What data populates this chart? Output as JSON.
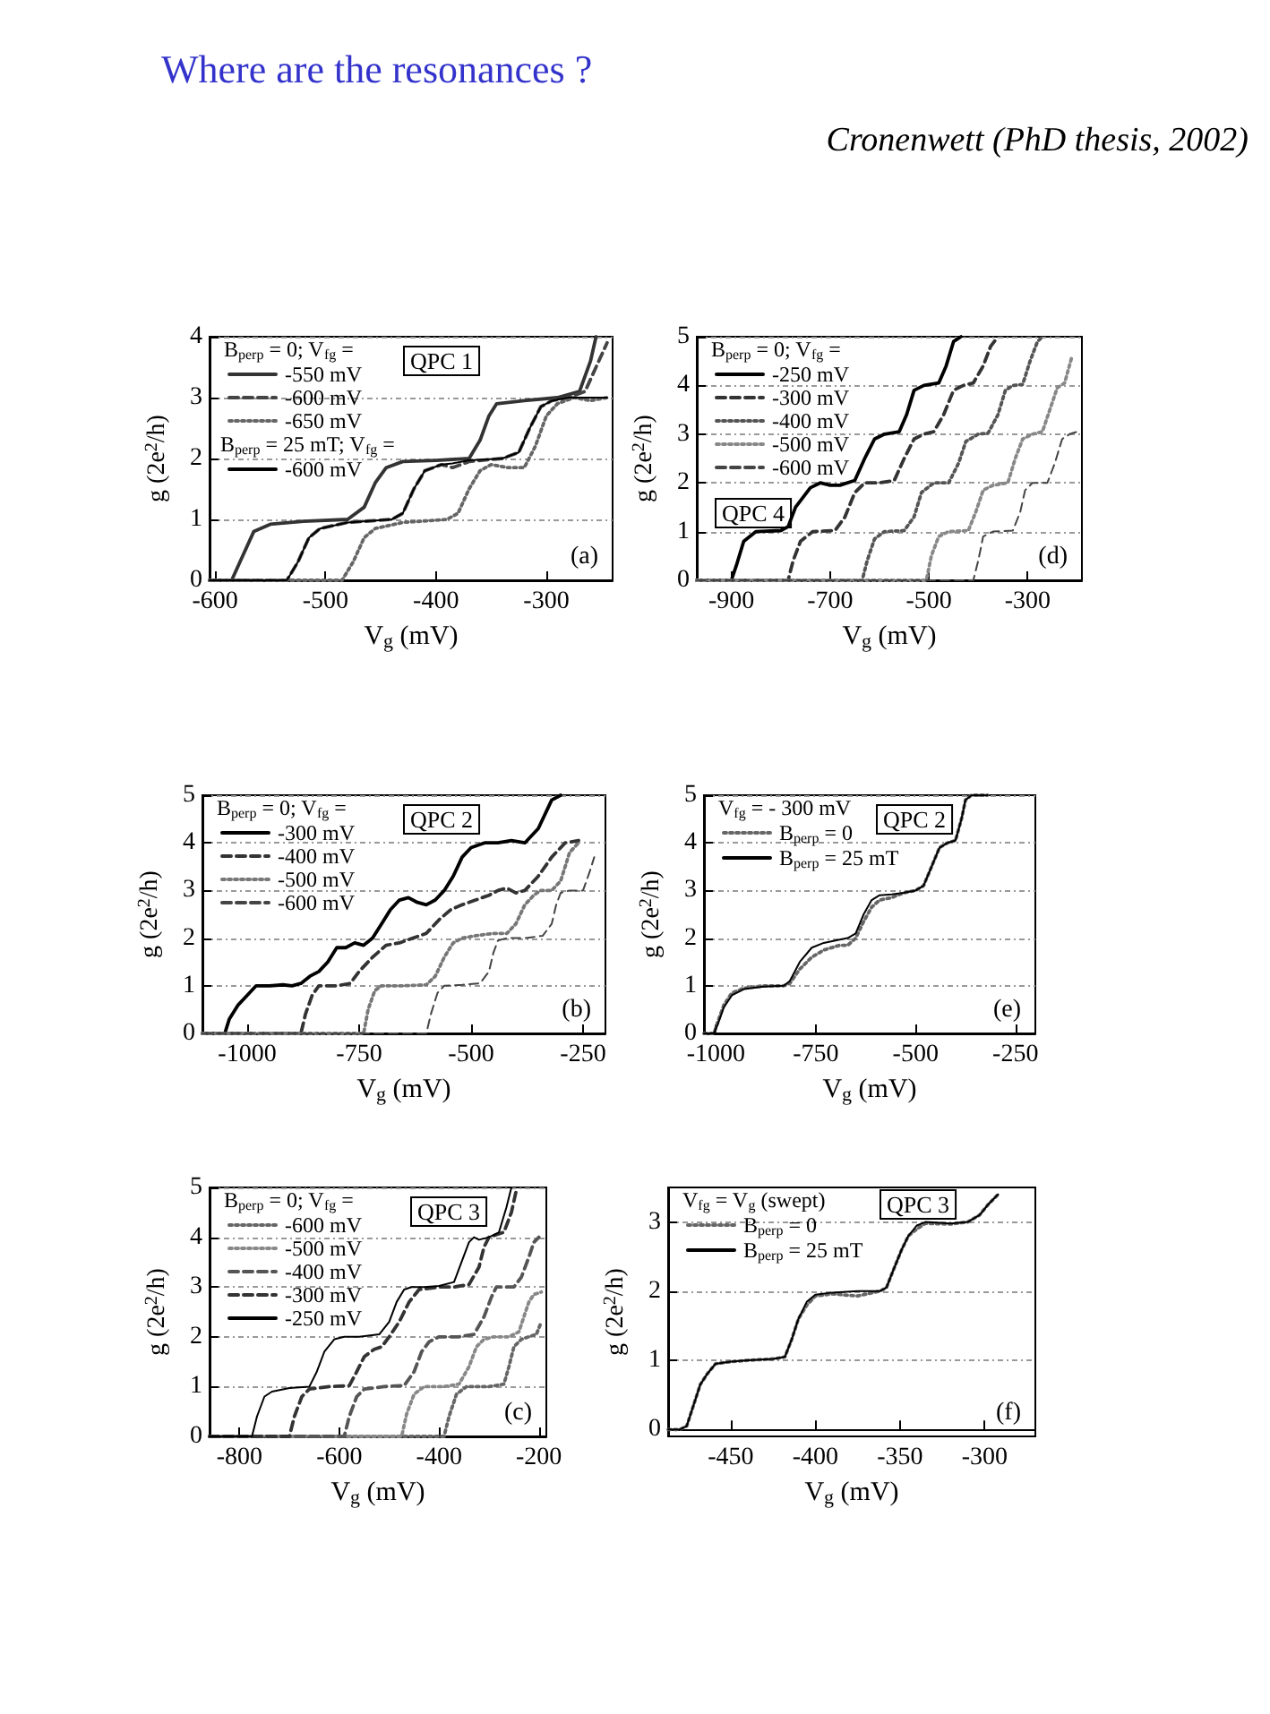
{
  "chart_data": [
    {
      "type": "line",
      "title": "Where are the resonances ?",
      "xlabel": "V$_{g}$ (mV)",
      "ylabel": "g (2e$^{2}$/h)",
      "legend_title": "B$_{perp}$ = 0; V$_{fg}$ =",
      "annotations": [
        "QPC 1",
        "(a)",
        "B$_{perp}$ = 25 mT; V$_{fg}$ ="
      ],
      "xlim": [
        -605,
        -240
      ],
      "xticks": [
        -600,
        -500,
        -400,
        -300
      ],
      "ylim": [
        0,
        4
      ],
      "yticks": [
        0,
        1,
        2,
        3,
        4
      ],
      "grid": "y",
      "legend": "top left",
      "series": [
        {
          "name": "-550 mV",
          "color": "#333333",
          "line_style": "solid",
          "x": [
            -605,
            -585,
            -575,
            -565,
            -550,
            -520,
            -480,
            -465,
            -455,
            -445,
            -430,
            -400,
            -370,
            -360,
            -352,
            -345,
            -320,
            -290,
            -270,
            -260,
            -255
          ],
          "values": [
            0,
            0,
            0.4,
            0.8,
            0.92,
            0.97,
            1.0,
            1.2,
            1.6,
            1.85,
            1.95,
            1.97,
            2.0,
            2.3,
            2.7,
            2.9,
            2.95,
            3.0,
            3.1,
            3.6,
            4.0
          ]
        },
        {
          "name": "-600 mV",
          "color": "#444444",
          "line_style": "dashed",
          "x": [
            -605,
            -535,
            -525,
            -515,
            -505,
            -480,
            -440,
            -430,
            -420,
            -410,
            -395,
            -385,
            -370,
            -340,
            -325,
            -315,
            -305,
            -295,
            -280,
            -265,
            -255,
            -245
          ],
          "values": [
            0,
            0,
            0.3,
            0.7,
            0.85,
            0.95,
            1.0,
            1.1,
            1.5,
            1.8,
            1.9,
            1.85,
            1.95,
            2.0,
            2.1,
            2.5,
            2.85,
            2.95,
            3.0,
            3.1,
            3.5,
            3.9
          ]
        },
        {
          "name": "-650 mV",
          "color": "#666666",
          "line_style": "dotted",
          "x": [
            -605,
            -485,
            -475,
            -465,
            -455,
            -430,
            -390,
            -380,
            -370,
            -360,
            -350,
            -335,
            -320,
            -310,
            -300,
            -290,
            -275,
            -260,
            -245
          ],
          "values": [
            0,
            0,
            0.3,
            0.7,
            0.85,
            0.95,
            1.0,
            1.1,
            1.5,
            1.8,
            1.9,
            1.85,
            1.85,
            2.2,
            2.7,
            2.9,
            3.0,
            2.95,
            3.0
          ]
        },
        {
          "name": "-600 mV",
          "color": "#000000",
          "line_style": "solid",
          "x": [
            -605,
            -535,
            -525,
            -515,
            -505,
            -480,
            -440,
            -430,
            -420,
            -410,
            -395,
            -385,
            -370,
            -340,
            -325,
            -315,
            -305,
            -295,
            -280,
            -265,
            -250,
            -245
          ],
          "values": [
            0,
            0,
            0.3,
            0.7,
            0.85,
            0.95,
            1.0,
            1.1,
            1.5,
            1.8,
            1.9,
            1.92,
            1.97,
            2.0,
            2.1,
            2.5,
            2.85,
            2.95,
            3.0,
            3.0,
            3.0,
            3.0
          ]
        }
      ]
    },
    {
      "type": "line",
      "subtitle": "Cronenwett (PhD thesis, 2002)",
      "xlabel": "V$_{g}$ (mV)",
      "ylabel": "g (2e$^{2}$/h)",
      "legend_title": "B$_{perp}$ = 0; V$_{fg}$ =",
      "annotations": [
        "QPC 4",
        "(d)"
      ],
      "xlim": [
        -970,
        -190
      ],
      "xticks": [
        -900,
        -700,
        -500,
        -300
      ],
      "ylim": [
        0,
        5
      ],
      "yticks": [
        0,
        1,
        2,
        3,
        4,
        5
      ],
      "grid": "y",
      "legend": "top left",
      "series": [
        {
          "name": "-250 mV",
          "color": "#000000",
          "line_style": "solid",
          "x": [
            -970,
            -900,
            -890,
            -875,
            -850,
            -800,
            -785,
            -770,
            -740,
            -720,
            -700,
            -680,
            -650,
            -630,
            -610,
            -590,
            -560,
            -545,
            -530,
            -510,
            -480,
            -465,
            -450,
            -435
          ],
          "values": [
            0,
            0,
            0.3,
            0.8,
            1.0,
            1.02,
            1.1,
            1.5,
            1.9,
            2.0,
            1.95,
            1.95,
            2.05,
            2.5,
            2.9,
            3.0,
            3.05,
            3.4,
            3.9,
            4.0,
            4.05,
            4.4,
            4.9,
            5.0
          ]
        },
        {
          "name": "-300 mV",
          "color": "#333333",
          "line_style": "dashed",
          "x": [
            -970,
            -785,
            -775,
            -760,
            -735,
            -690,
            -670,
            -650,
            -630,
            -600,
            -570,
            -550,
            -530,
            -510,
            -490,
            -470,
            -450,
            -430,
            -410,
            -390,
            -375,
            -360
          ],
          "values": [
            0,
            0,
            0.4,
            0.8,
            1.0,
            1.02,
            1.3,
            1.8,
            2.0,
            2.0,
            2.05,
            2.5,
            2.9,
            3.0,
            3.05,
            3.4,
            3.9,
            4.0,
            4.05,
            4.4,
            4.8,
            5.0
          ]
        },
        {
          "name": "-400 mV",
          "color": "#555555",
          "line_style": "dotted",
          "x": [
            -970,
            -635,
            -625,
            -610,
            -590,
            -550,
            -530,
            -515,
            -490,
            -460,
            -440,
            -425,
            -400,
            -380,
            -360,
            -345,
            -330,
            -310,
            -295,
            -280,
            -270
          ],
          "values": [
            0,
            0,
            0.4,
            0.85,
            1.0,
            1.02,
            1.3,
            1.8,
            2.0,
            2.0,
            2.4,
            2.85,
            3.0,
            3.02,
            3.4,
            3.9,
            4.0,
            4.02,
            4.5,
            4.9,
            5.0
          ]
        },
        {
          "name": "-500 mV",
          "color": "#888888",
          "line_style": "dotted",
          "x": [
            -970,
            -505,
            -495,
            -480,
            -460,
            -420,
            -405,
            -390,
            -370,
            -340,
            -325,
            -310,
            -290,
            -270,
            -255,
            -240,
            -225,
            -210
          ],
          "values": [
            0,
            0,
            0.5,
            0.9,
            1.0,
            1.02,
            1.4,
            1.85,
            1.95,
            2.0,
            2.5,
            2.9,
            3.0,
            3.05,
            3.5,
            3.95,
            4.05,
            4.6
          ]
        },
        {
          "name": "-600 mV",
          "color": "#444444",
          "line_style": "dashed",
          "x": [
            -970,
            -410,
            -400,
            -390,
            -370,
            -330,
            -315,
            -305,
            -290,
            -260,
            -245,
            -230,
            -215,
            -200
          ],
          "values": [
            0,
            0,
            0.4,
            0.9,
            1.0,
            1.02,
            1.4,
            1.85,
            2.0,
            2.0,
            2.4,
            2.9,
            3.0,
            3.05
          ]
        }
      ]
    },
    {
      "type": "line",
      "xlabel": "V$_{g}$ (mV)",
      "ylabel": "g (2e$^{2}$/h)",
      "legend_title": "B$_{perp}$ = 0; V$_{fg}$ =",
      "annotations": [
        "QPC 2",
        "(b)"
      ],
      "xlim": [
        -1100,
        -200
      ],
      "xticks": [
        -1000,
        -750,
        -500,
        -250
      ],
      "ylim": [
        0,
        5
      ],
      "yticks": [
        0,
        1,
        2,
        3,
        4,
        5
      ],
      "grid": "y",
      "legend": "top left",
      "series": [
        {
          "name": "-300 mV",
          "color": "#000000",
          "line_style": "solid",
          "x": [
            -1100,
            -1050,
            -1040,
            -1020,
            -1000,
            -980,
            -950,
            -920,
            -900,
            -880,
            -860,
            -840,
            -820,
            -800,
            -780,
            -760,
            -740,
            -720,
            -700,
            -680,
            -660,
            -640,
            -620,
            -600,
            -580,
            -560,
            -540,
            -520,
            -500,
            -470,
            -440,
            -410,
            -380,
            -350,
            -320,
            -300
          ],
          "values": [
            0,
            0,
            0.3,
            0.6,
            0.8,
            1.0,
            1.0,
            1.02,
            1.0,
            1.05,
            1.2,
            1.3,
            1.5,
            1.8,
            1.8,
            1.9,
            1.85,
            2.0,
            2.3,
            2.6,
            2.8,
            2.85,
            2.75,
            2.7,
            2.8,
            3.0,
            3.3,
            3.7,
            3.9,
            4.0,
            4.0,
            4.05,
            4.0,
            4.3,
            4.9,
            5.0
          ]
        },
        {
          "name": "-400 mV",
          "color": "#333333",
          "line_style": "dashed",
          "x": [
            -1100,
            -880,
            -870,
            -855,
            -840,
            -800,
            -770,
            -750,
            -720,
            -690,
            -660,
            -630,
            -600,
            -570,
            -545,
            -520,
            -490,
            -460,
            -440,
            -420,
            -400,
            -380,
            -350,
            -320,
            -290,
            -260
          ],
          "values": [
            0,
            0,
            0.4,
            0.8,
            1.0,
            1.0,
            1.05,
            1.3,
            1.6,
            1.85,
            1.9,
            2.0,
            2.1,
            2.4,
            2.6,
            2.7,
            2.8,
            2.9,
            3.0,
            3.05,
            2.95,
            3.0,
            3.3,
            3.7,
            4.0,
            4.05
          ]
        },
        {
          "name": "-500 mV",
          "color": "#777777",
          "line_style": "dotted",
          "x": [
            -1100,
            -740,
            -730,
            -715,
            -700,
            -650,
            -600,
            -580,
            -560,
            -540,
            -520,
            -490,
            -450,
            -420,
            -400,
            -380,
            -360,
            -345,
            -320,
            -300,
            -280,
            -260
          ],
          "values": [
            0,
            0,
            0.5,
            0.9,
            1.0,
            1.0,
            1.02,
            1.2,
            1.6,
            1.9,
            2.0,
            2.05,
            2.1,
            2.1,
            2.3,
            2.7,
            2.9,
            3.0,
            3.0,
            3.2,
            3.8,
            4.0
          ]
        },
        {
          "name": "-600 mV",
          "color": "#444444",
          "line_style": "dashed",
          "x": [
            -1100,
            -600,
            -590,
            -575,
            -560,
            -520,
            -480,
            -460,
            -450,
            -440,
            -420,
            -380,
            -340,
            -320,
            -310,
            -300,
            -280,
            -250,
            -235,
            -225
          ],
          "values": [
            0,
            0,
            0.4,
            0.85,
            1.0,
            1.02,
            1.05,
            1.3,
            1.7,
            1.95,
            2.0,
            2.0,
            2.05,
            2.3,
            2.7,
            2.95,
            3.0,
            3.0,
            3.4,
            3.7
          ]
        }
      ]
    },
    {
      "type": "line",
      "xlabel": "V$_{g}$ (mV)",
      "ylabel": "g (2e$^{2}$/h)",
      "legend_title": "V$_{fg}$ = - 300 mV",
      "annotations": [
        "QPC 2",
        "(e)"
      ],
      "xlim": [
        -1030,
        -200
      ],
      "xticks": [
        -1000,
        -750,
        -500,
        -250
      ],
      "ylim": [
        0,
        5
      ],
      "yticks": [
        0,
        1,
        2,
        3,
        4,
        5
      ],
      "grid": "y",
      "legend": "top left",
      "series": [
        {
          "name": "B$_{perp}$ = 0",
          "color": "#666666",
          "line_style": "dotted",
          "x": [
            -1030,
            -1005,
            -995,
            -980,
            -960,
            -930,
            -880,
            -830,
            -815,
            -790,
            -760,
            -730,
            -690,
            -670,
            -650,
            -630,
            -610,
            -590,
            -560,
            -530,
            -500,
            -480,
            -460,
            -440,
            -420,
            -400,
            -385,
            -375,
            -360,
            -340,
            -320
          ],
          "values": [
            0,
            0,
            0.25,
            0.6,
            0.85,
            0.95,
            1.0,
            1.0,
            1.05,
            1.35,
            1.6,
            1.75,
            1.85,
            1.85,
            2.0,
            2.35,
            2.65,
            2.8,
            2.85,
            2.95,
            3.0,
            3.1,
            3.5,
            3.9,
            4.0,
            4.05,
            4.5,
            4.9,
            5.0,
            5.0,
            5.0
          ]
        },
        {
          "name": "B$_{perp}$ = 25 mT",
          "color": "#000000",
          "line_style": "solid",
          "x": [
            -1030,
            -1005,
            -995,
            -980,
            -960,
            -930,
            -880,
            -830,
            -815,
            -790,
            -760,
            -730,
            -690,
            -670,
            -650,
            -630,
            -610,
            -590,
            -560,
            -530,
            -500,
            -480,
            -460,
            -440,
            -420,
            -400,
            -385,
            -375,
            -360,
            -340,
            -320
          ],
          "values": [
            0,
            0,
            0.2,
            0.55,
            0.8,
            0.93,
            0.98,
            1.0,
            1.1,
            1.5,
            1.8,
            1.9,
            1.97,
            2.0,
            2.1,
            2.5,
            2.8,
            2.9,
            2.92,
            2.95,
            3.0,
            3.1,
            3.5,
            3.9,
            4.0,
            4.05,
            4.5,
            4.9,
            5.0,
            5.0,
            5.0
          ]
        }
      ]
    },
    {
      "type": "line",
      "xlabel": "V$_{g}$ (mV)",
      "ylabel": "g (2e$^{2}$/h)",
      "legend_title": "B$_{perp}$ = 0; V$_{fg}$ =",
      "annotations": [
        "QPC 3",
        "(c)"
      ],
      "xlim": [
        -860,
        -185
      ],
      "xticks": [
        -800,
        -600,
        -400,
        -200
      ],
      "ylim": [
        0,
        5
      ],
      "yticks": [
        0,
        1,
        2,
        3,
        4,
        5
      ],
      "grid": "y",
      "legend": "top left",
      "series": [
        {
          "name": "-600 mV",
          "color": "#666666",
          "line_style": "dotted",
          "x": [
            -860,
            -390,
            -380,
            -365,
            -345,
            -300,
            -270,
            -260,
            -250,
            -235,
            -220,
            -205,
            -195
          ],
          "values": [
            0,
            0,
            0.4,
            0.85,
            1.0,
            1.0,
            1.05,
            1.4,
            1.8,
            1.95,
            2.0,
            2.05,
            2.3
          ]
        },
        {
          "name": "-500 mV",
          "color": "#888888",
          "line_style": "dotted",
          "x": [
            -860,
            -475,
            -465,
            -450,
            -430,
            -390,
            -360,
            -340,
            -325,
            -310,
            -290,
            -260,
            -240,
            -230,
            -220,
            -210,
            -195
          ],
          "values": [
            0,
            0,
            0.45,
            0.85,
            1.0,
            1.0,
            1.05,
            1.4,
            1.8,
            1.95,
            2.0,
            2.0,
            2.1,
            2.4,
            2.7,
            2.85,
            2.9
          ]
        },
        {
          "name": "-400 mV",
          "color": "#555555",
          "line_style": "dashed",
          "x": [
            -860,
            -590,
            -580,
            -565,
            -550,
            -510,
            -470,
            -450,
            -435,
            -420,
            -400,
            -360,
            -330,
            -310,
            -295,
            -285,
            -270,
            -250,
            -235,
            -220,
            -210,
            -200
          ],
          "values": [
            0,
            0,
            0.4,
            0.8,
            0.95,
            1.0,
            1.02,
            1.3,
            1.7,
            1.9,
            2.0,
            2.0,
            2.05,
            2.4,
            2.8,
            3.0,
            3.0,
            3.0,
            3.2,
            3.6,
            3.9,
            4.0
          ]
        },
        {
          "name": "-300 mV",
          "color": "#333333",
          "line_style": "dashed",
          "x": [
            -860,
            -700,
            -690,
            -675,
            -660,
            -620,
            -580,
            -565,
            -550,
            -530,
            -515,
            -500,
            -480,
            -460,
            -440,
            -400,
            -370,
            -340,
            -320,
            -310,
            -300,
            -285,
            -270,
            -255,
            -245
          ],
          "values": [
            0,
            0,
            0.4,
            0.8,
            0.95,
            1.0,
            1.02,
            1.3,
            1.6,
            1.75,
            1.8,
            2.0,
            2.3,
            2.7,
            2.95,
            3.0,
            3.0,
            3.05,
            3.4,
            3.8,
            4.0,
            4.05,
            4.1,
            4.5,
            4.95
          ]
        },
        {
          "name": "-250 mV",
          "color": "#000000",
          "line_style": "solid",
          "x": [
            -860,
            -775,
            -765,
            -750,
            -735,
            -700,
            -660,
            -645,
            -630,
            -610,
            -590,
            -560,
            -520,
            -500,
            -485,
            -470,
            -455,
            -430,
            -400,
            -370,
            -355,
            -340,
            -330,
            -320,
            -300,
            -280,
            -265,
            -255
          ],
          "values": [
            0,
            0,
            0.4,
            0.8,
            0.9,
            0.97,
            1.0,
            1.3,
            1.7,
            1.95,
            2.0,
            2.0,
            2.05,
            2.3,
            2.7,
            2.95,
            3.0,
            3.0,
            3.02,
            3.1,
            3.5,
            3.9,
            4.0,
            3.95,
            4.0,
            4.1,
            4.6,
            5.0
          ]
        }
      ]
    },
    {
      "type": "line",
      "xlabel": "V$_{g}$ (mV)",
      "ylabel": "g (2e$^{2}$/h)",
      "legend_title": "V$_{fg}$ = V$_{g}$ (swept)",
      "annotations": [
        "QPC 3",
        "(f)"
      ],
      "xlim": [
        -487,
        -270
      ],
      "xticks": [
        -450,
        -400,
        -350,
        -300
      ],
      "ylim": [
        -0.1,
        3.5
      ],
      "yticks": [
        0,
        1,
        2,
        3
      ],
      "grid": "y",
      "legend": "top left",
      "series": [
        {
          "name": "B$_{perp}$ = 0",
          "color": "#666666",
          "line_style": "dotted",
          "x": [
            -487,
            -480,
            -476,
            -472,
            -468,
            -464,
            -459,
            -450,
            -440,
            -425,
            -418,
            -414,
            -410,
            -405,
            -400,
            -390,
            -375,
            -362,
            -358,
            -354,
            -349,
            -345,
            -340,
            -335,
            -320,
            -310,
            -303,
            -298,
            -292
          ],
          "values": [
            0,
            0,
            0.05,
            0.35,
            0.65,
            0.8,
            0.95,
            0.98,
            1.0,
            1.02,
            1.05,
            1.3,
            1.6,
            1.8,
            1.93,
            1.96,
            1.93,
            2.0,
            2.05,
            2.3,
            2.6,
            2.8,
            2.9,
            2.98,
            2.97,
            3.0,
            3.1,
            3.25,
            3.4
          ]
        },
        {
          "name": "B$_{perp}$ = 25 mT",
          "color": "#000000",
          "line_style": "solid",
          "x": [
            -487,
            -480,
            -476,
            -472,
            -468,
            -464,
            -459,
            -450,
            -440,
            -425,
            -418,
            -414,
            -410,
            -405,
            -400,
            -390,
            -375,
            -362,
            -358,
            -354,
            -349,
            -345,
            -340,
            -335,
            -320,
            -310,
            -303,
            -298,
            -292
          ],
          "values": [
            0,
            0,
            0.05,
            0.35,
            0.65,
            0.8,
            0.95,
            0.98,
            1.0,
            1.02,
            1.05,
            1.3,
            1.6,
            1.85,
            1.95,
            1.98,
            2.0,
            2.0,
            2.05,
            2.3,
            2.6,
            2.8,
            2.95,
            3.0,
            2.98,
            3.0,
            3.1,
            3.25,
            3.4
          ]
        }
      ]
    }
  ]
}
